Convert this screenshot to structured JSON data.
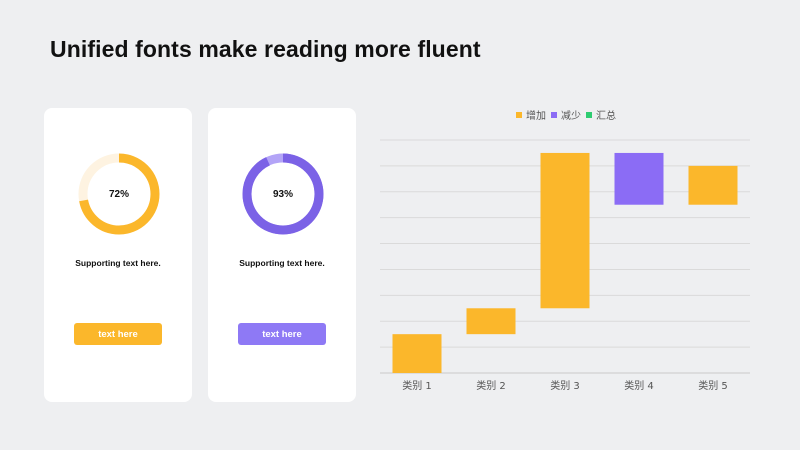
{
  "title": "Unified fonts make reading more fluent",
  "cards": [
    {
      "percent_label": "72%",
      "percent": 72,
      "support_text": "Supporting text here.",
      "button_label": "text here",
      "color": "#fbb72b",
      "track_color": "#fef3e1"
    },
    {
      "percent_label": "93%",
      "percent": 93,
      "support_text": "Supporting text here.",
      "button_label": "text here",
      "color": "#7b62e6",
      "track_color": "#b3a4f7",
      "button_color": "#8e79f5"
    }
  ],
  "chart_data": {
    "type": "waterfall",
    "legend": [
      {
        "label": "增加",
        "color": "#fbb72b"
      },
      {
        "label": "减少",
        "color": "#8b6cf5"
      },
      {
        "label": "汇总",
        "color": "#2ecc71"
      }
    ],
    "legend_position": "top",
    "categories": [
      "类别 1",
      "类别 2",
      "类别 3",
      "类别 4",
      "类别 5"
    ],
    "bars": [
      {
        "category": "类别 1",
        "series": "增加",
        "start": 0,
        "end": 1.5
      },
      {
        "category": "类别 2",
        "series": "增加",
        "start": 1.5,
        "end": 2.5
      },
      {
        "category": "类别 3",
        "series": "增加",
        "start": 2.5,
        "end": 8.5
      },
      {
        "category": "类别 4",
        "series": "减少",
        "start": 8.5,
        "end": 6.5
      },
      {
        "category": "类别 5",
        "series": "增加",
        "start": 6.5,
        "end": 8.0
      }
    ],
    "ylim": [
      0,
      9
    ],
    "grid": true
  }
}
